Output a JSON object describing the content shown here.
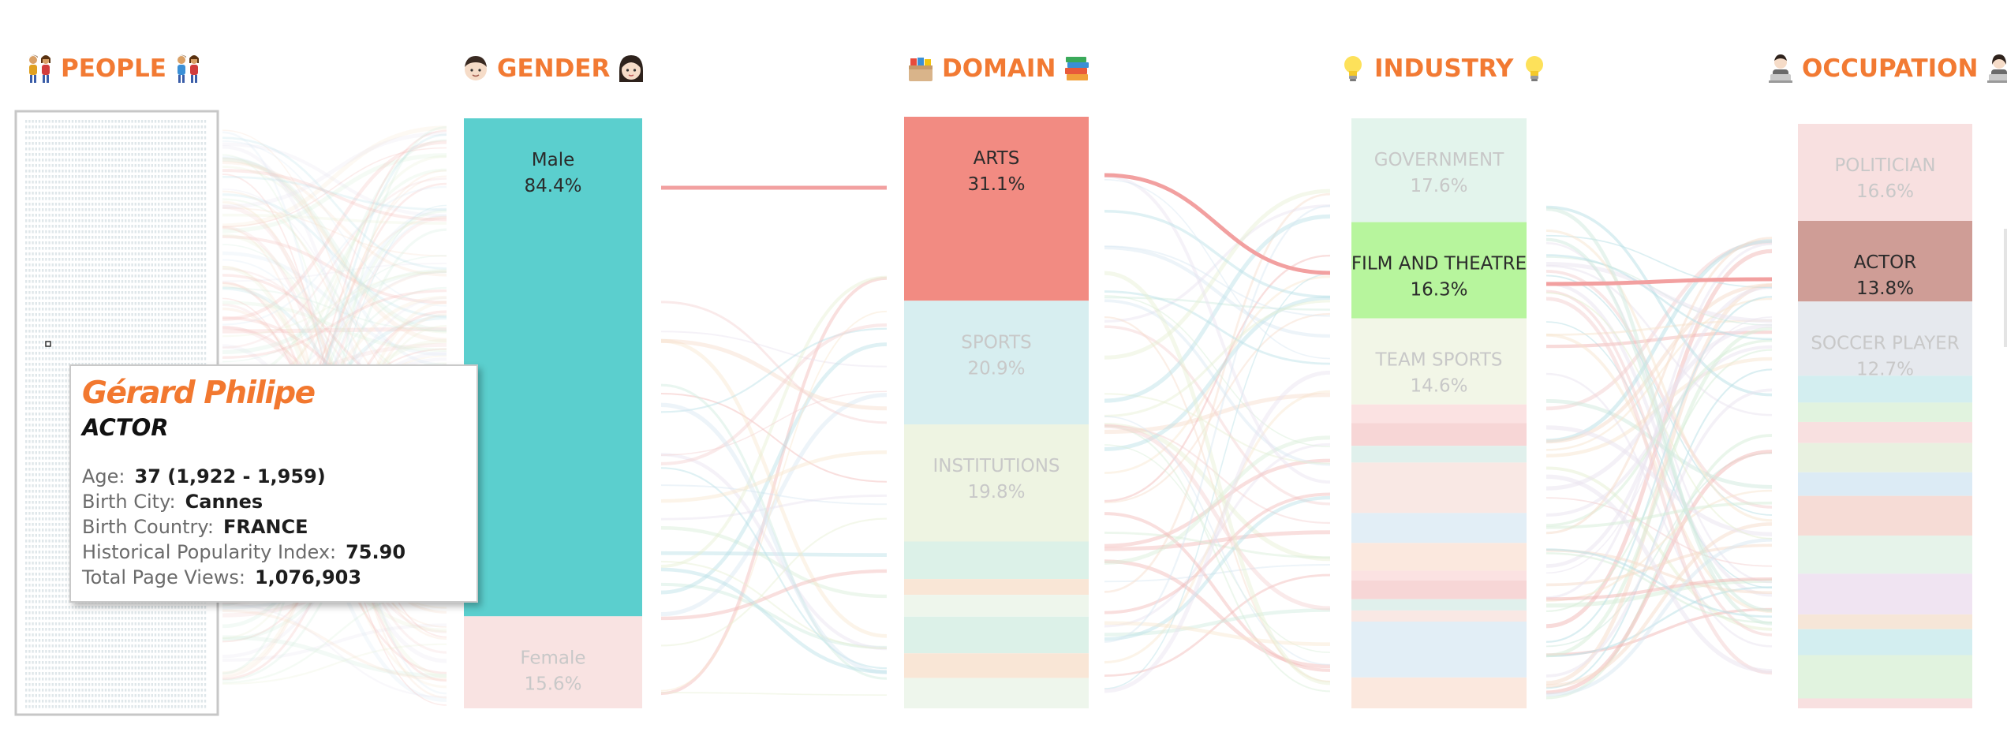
{
  "headers": {
    "people": "PEOPLE",
    "gender": "GENDER",
    "domain": "DOMAIN",
    "industry": "INDUSTRY",
    "occupation": "OCCUPATION"
  },
  "icons": {
    "people": [
      "couple-icon",
      "couple-icon"
    ],
    "gender": [
      "man-face-icon",
      "woman-face-icon"
    ],
    "domain": [
      "card-file-box-icon",
      "books-icon"
    ],
    "industry": [
      "light-bulb-icon",
      "light-bulb-icon"
    ],
    "occupation": [
      "technologist-icon",
      "technologist-icon"
    ]
  },
  "colors": {
    "header": "#f27a33",
    "male": "#5bcfce",
    "arts": "#f28b82",
    "film": "#b7f59d",
    "actor": "#cf9d96",
    "highlight_link": "#f2a0a0"
  },
  "chart_data": {
    "type": "sankey",
    "stages": [
      "PEOPLE",
      "GENDER",
      "DOMAIN",
      "INDUSTRY",
      "OCCUPATION"
    ],
    "gender": [
      {
        "label": "Male",
        "pct": "84.4%",
        "value": 84.4,
        "highlighted": true
      },
      {
        "label": "Female",
        "pct": "15.6%",
        "value": 15.6,
        "highlighted": false
      }
    ],
    "domain": [
      {
        "label": "ARTS",
        "pct": "31.1%",
        "value": 31.1,
        "highlighted": true
      },
      {
        "label": "SPORTS",
        "pct": "20.9%",
        "value": 20.9,
        "highlighted": false
      },
      {
        "label": "INSTITUTIONS",
        "pct": "19.8%",
        "value": 19.8,
        "highlighted": false
      }
    ],
    "industry": [
      {
        "label": "GOVERNMENT",
        "pct": "17.6%",
        "value": 17.6,
        "highlighted": false
      },
      {
        "label": "FILM AND THEATRE",
        "pct": "16.3%",
        "value": 16.3,
        "highlighted": true
      },
      {
        "label": "TEAM SPORTS",
        "pct": "14.6%",
        "value": 14.6,
        "highlighted": false
      }
    ],
    "occupation": [
      {
        "label": "POLITICIAN",
        "pct": "16.6%",
        "value": 16.6,
        "highlighted": false
      },
      {
        "label": "ACTOR",
        "pct": "13.8%",
        "value": 13.8,
        "highlighted": true
      },
      {
        "label": "SOCCER PLAYER",
        "pct": "12.7%",
        "value": 12.7,
        "highlighted": false
      }
    ]
  },
  "tooltip": {
    "name": "Gérard Philipe",
    "occupation": "ACTOR",
    "rows": [
      {
        "label": "Age:",
        "value": "37 (1,922 - 1,959)"
      },
      {
        "label": "Birth City:",
        "value": "Cannes"
      },
      {
        "label": "Birth Country:",
        "value": "FRANCE"
      },
      {
        "label": "Historical Popularity Index:",
        "value": "75.90"
      },
      {
        "label": "Total Page Views:",
        "value": "1,076,903"
      }
    ]
  }
}
